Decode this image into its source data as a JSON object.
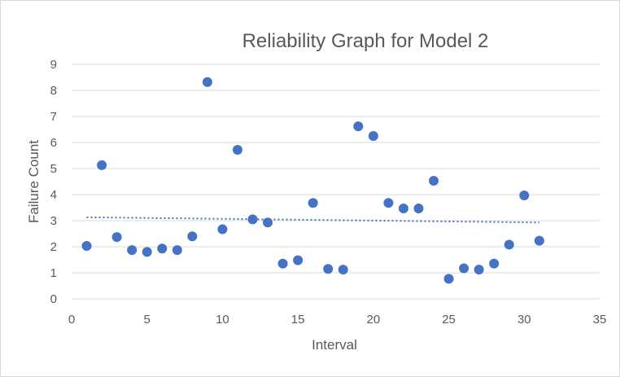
{
  "chart_data": {
    "type": "scatter",
    "title": "Reliability Graph for Model 2",
    "xlabel": "Interval",
    "ylabel": "Failure Count",
    "xlim": [
      0,
      35
    ],
    "ylim": [
      0,
      9
    ],
    "xticks": [
      0,
      5,
      10,
      15,
      20,
      25,
      30,
      35
    ],
    "yticks": [
      0,
      1,
      2,
      3,
      4,
      5,
      6,
      7,
      8,
      9
    ],
    "grid": "horizontal",
    "legend": "none",
    "colors": {
      "points": "#4472c4",
      "trendline": "#4472c4",
      "grid": "#d9d9d9",
      "text": "#595959"
    },
    "series": [
      {
        "x": [
          1,
          2,
          3,
          4,
          5,
          6,
          7,
          8,
          9,
          10,
          11,
          12,
          13,
          14,
          15,
          16,
          17,
          18,
          19,
          20,
          21,
          22,
          23,
          24,
          25,
          26,
          27,
          28,
          29,
          30,
          31
        ],
        "y": [
          2.03,
          5.13,
          2.37,
          1.87,
          1.8,
          1.93,
          1.87,
          2.4,
          8.32,
          2.67,
          5.72,
          3.05,
          2.93,
          1.35,
          1.48,
          3.68,
          1.15,
          1.12,
          6.62,
          6.25,
          3.68,
          3.47,
          3.47,
          4.53,
          0.77,
          1.17,
          1.12,
          1.35,
          2.08,
          3.97,
          2.23
        ]
      }
    ],
    "trendline": {
      "type": "linear",
      "x": [
        1,
        31
      ],
      "y": [
        3.13,
        2.93
      ]
    }
  }
}
